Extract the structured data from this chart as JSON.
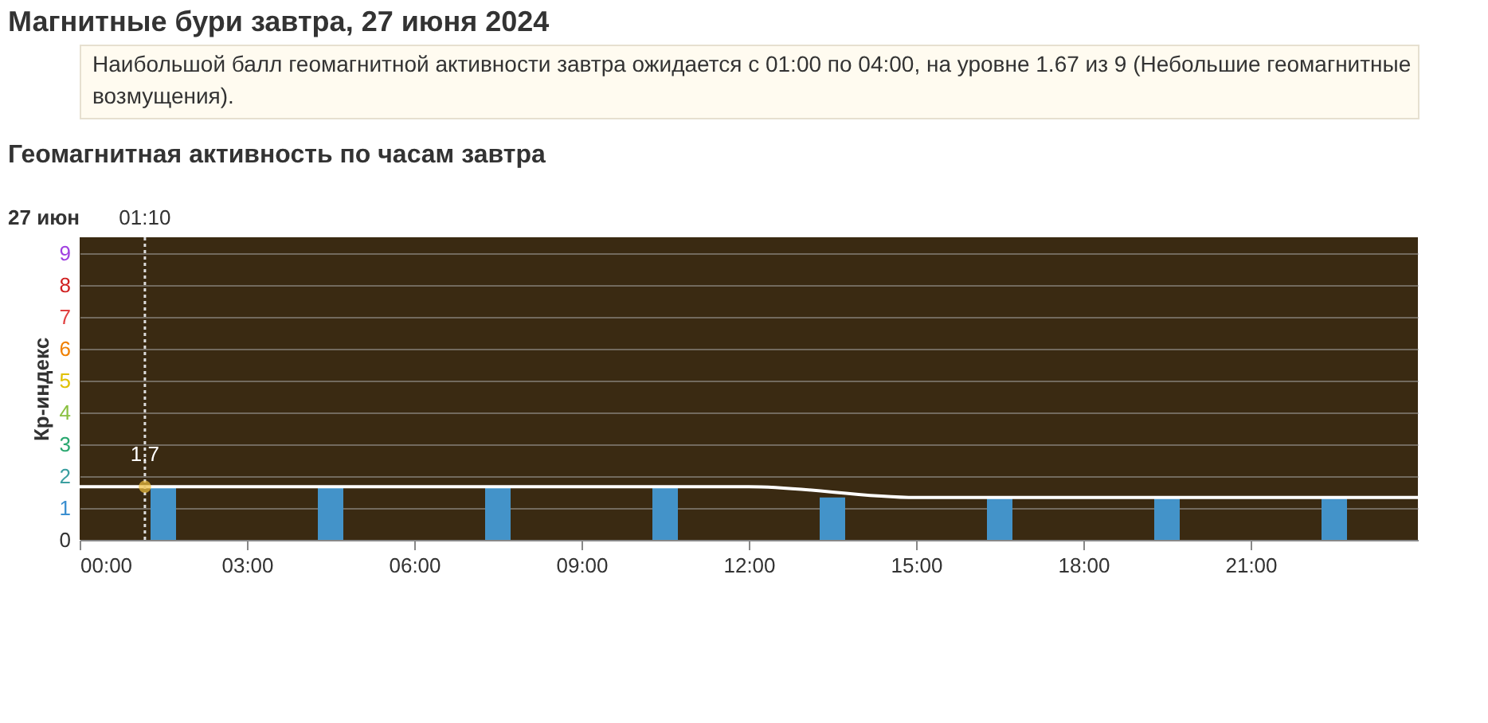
{
  "chart_data": {
    "type": "bar",
    "title": "Магнитные бури завтра, 27 июня 2024",
    "subtitle": "Геомагнитная активность по часам завтра",
    "ylabel": "Кр-индекс",
    "annotations": [
      "Наибольшой балл геомагнитной активности завтра ожидается с 01:00 по 04:00, на уровне 1.67 из 9 (Небольшие геомагнитные возмущения).",
      "27 июн",
      {
        "text": "1.7",
        "x": 1.17,
        "y": 1.67
      }
    ],
    "xlim": [
      0,
      24
    ],
    "xticks": [
      {
        "value": 0,
        "label": "00:00"
      },
      {
        "value": 3,
        "label": "03:00"
      },
      {
        "value": 6,
        "label": "06:00"
      },
      {
        "value": 9,
        "label": "09:00"
      },
      {
        "value": 12,
        "label": "12:00"
      },
      {
        "value": 15,
        "label": "15:00"
      },
      {
        "value": 18,
        "label": "18:00"
      },
      {
        "value": 21,
        "label": "21:00"
      }
    ],
    "ylim": [
      0,
      9.5
    ],
    "yticks": [
      0,
      1,
      2,
      3,
      4,
      5,
      6,
      7,
      8,
      9
    ],
    "grid": "y",
    "ref_lines": [
      {
        "axis": "x",
        "value": 1.17,
        "label": "01:10",
        "color": "#dddddd",
        "line_style": "dotted"
      }
    ],
    "series": [
      {
        "x": [
          1.5,
          4.5,
          7.5,
          10.5,
          13.5,
          16.5,
          19.5,
          22.5
        ],
        "values": [
          1.67,
          1.67,
          1.67,
          1.67,
          1.33,
          1.33,
          1.33,
          1.33
        ],
        "color": "#4393c9"
      },
      {
        "type": "line",
        "x": [
          0,
          12,
          15,
          24
        ],
        "values": [
          1.67,
          1.67,
          1.33,
          1.33
        ],
        "color": "#ffffff"
      }
    ]
  }
}
